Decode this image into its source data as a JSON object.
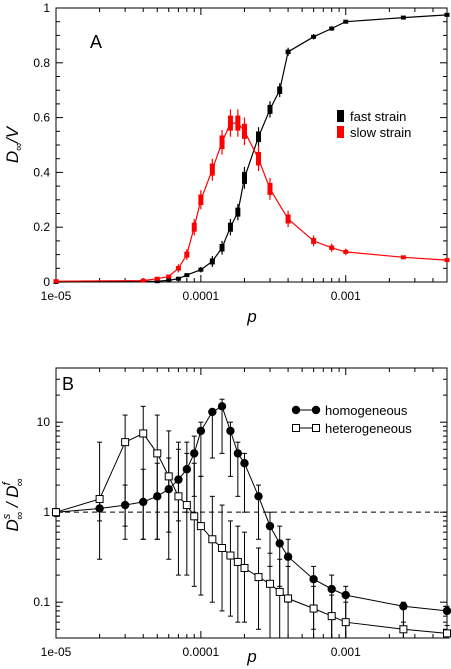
{
  "chart_data": [
    {
      "panel_label": "A",
      "type": "line",
      "x_scale": "log",
      "xlim": [
        1e-05,
        0.005
      ],
      "ylim": [
        0,
        1
      ],
      "x_ticks": [
        1e-05,
        0.0001,
        0.001
      ],
      "x_tick_labels": [
        "1e-05",
        "0.0001",
        "0.001"
      ],
      "y_ticks": [
        0,
        0.2,
        0.4,
        0.6,
        0.8,
        1
      ],
      "y_tick_labels": [
        "0",
        "0.2",
        "0.4",
        "0.6",
        "0.8",
        "1"
      ],
      "xlabel": "p",
      "ylabel": "D∞/V",
      "legend_position": "right",
      "series": [
        {
          "name": "fast strain",
          "color": "#000000",
          "x": [
            1e-05,
            5e-05,
            6e-05,
            7e-05,
            8e-05,
            0.0001,
            0.00012,
            0.00014,
            0.00016,
            0.00018,
            0.0002,
            0.00025,
            0.0003,
            0.00035,
            0.0004,
            0.0006,
            0.0008,
            0.001,
            0.0025,
            0.005
          ],
          "y": [
            0,
            0.003,
            0.006,
            0.012,
            0.025,
            0.045,
            0.075,
            0.125,
            0.2,
            0.255,
            0.38,
            0.53,
            0.63,
            0.7,
            0.84,
            0.895,
            0.925,
            0.95,
            0.965,
            0.975
          ],
          "error": [
            0,
            0,
            0,
            0,
            0.005,
            0.01,
            0.02,
            0.025,
            0.03,
            0.03,
            0.04,
            0.035,
            0.03,
            0.025,
            0.015,
            0.01,
            0.008,
            0.005,
            0.003,
            0.003
          ]
        },
        {
          "name": "slow strain",
          "color": "#ff0000",
          "x": [
            1e-05,
            4e-05,
            5e-05,
            6e-05,
            7e-05,
            8e-05,
            9e-05,
            0.0001,
            0.00012,
            0.00014,
            0.00016,
            0.00018,
            0.0002,
            0.00025,
            0.0003,
            0.0004,
            0.0006,
            0.0008,
            0.001,
            0.0025,
            0.005
          ],
          "y": [
            0.003,
            0.005,
            0.012,
            0.02,
            0.05,
            0.1,
            0.2,
            0.3,
            0.41,
            0.51,
            0.58,
            0.58,
            0.55,
            0.45,
            0.34,
            0.23,
            0.15,
            0.125,
            0.11,
            0.09,
            0.08
          ],
          "error": [
            0,
            0,
            0,
            0.005,
            0.015,
            0.02,
            0.03,
            0.035,
            0.04,
            0.045,
            0.05,
            0.05,
            0.05,
            0.045,
            0.04,
            0.03,
            0.02,
            0.015,
            0.012,
            0.006,
            0.005
          ]
        }
      ]
    },
    {
      "panel_label": "B",
      "type": "line",
      "x_scale": "log",
      "y_scale": "log",
      "xlim": [
        1e-05,
        0.005
      ],
      "ylim": [
        0.04,
        40
      ],
      "x_ticks": [
        1e-05,
        0.0001,
        0.001
      ],
      "x_tick_labels": [
        "1e-05",
        "0.0001",
        "0.001"
      ],
      "y_ticks": [
        0.1,
        1,
        10
      ],
      "y_tick_labels": [
        "0.1",
        "1",
        "10"
      ],
      "reference_line_y": 1,
      "xlabel": "p",
      "ylabel": "Ds∞ / Df∞",
      "legend_position": "top-right",
      "series": [
        {
          "name": "homogeneous",
          "marker": "filled-circle",
          "x": [
            1e-05,
            2e-05,
            3e-05,
            4e-05,
            5e-05,
            6e-05,
            7e-05,
            8e-05,
            9e-05,
            0.0001,
            0.00012,
            0.00014,
            0.00016,
            0.00018,
            0.0002,
            0.00025,
            0.0003,
            0.00035,
            0.0004,
            0.0006,
            0.0008,
            0.001,
            0.0025,
            0.005
          ],
          "y": [
            1.0,
            1.1,
            1.2,
            1.3,
            1.5,
            1.8,
            2.3,
            3.0,
            4.5,
            8.0,
            13.0,
            15.0,
            8.0,
            4.5,
            3.5,
            1.5,
            0.7,
            0.45,
            0.32,
            0.18,
            0.14,
            0.12,
            0.09,
            0.08
          ],
          "error_low": [
            0.9,
            0.8,
            0.7,
            0.5,
            0.5,
            0.6,
            0.8,
            1.0,
            1.5,
            2.5,
            4.0,
            4.5,
            2.5,
            1.5,
            1.0,
            0.5,
            0.25,
            0.15,
            0.1,
            0.05,
            0.04,
            0.03,
            0.02,
            0.02
          ],
          "error_high": [
            1.1,
            1.5,
            2.0,
            3.0,
            3.5,
            4.0,
            5.0,
            6.0,
            7.0,
            10.0,
            14.0,
            18.0,
            10.0,
            6.0,
            4.5,
            2.0,
            1.0,
            0.7,
            0.5,
            0.25,
            0.2,
            0.15,
            0.1,
            0.09
          ]
        },
        {
          "name": "heterogeneous",
          "marker": "open-square",
          "x": [
            1e-05,
            2e-05,
            3e-05,
            4e-05,
            5e-05,
            6e-05,
            7e-05,
            8e-05,
            9e-05,
            0.0001,
            0.00012,
            0.00014,
            0.00016,
            0.00018,
            0.0002,
            0.00025,
            0.0003,
            0.00035,
            0.0004,
            0.0006,
            0.0008,
            0.001,
            0.0025,
            0.005
          ],
          "y": [
            1.0,
            1.4,
            6.0,
            7.5,
            4.5,
            2.5,
            1.5,
            1.2,
            0.9,
            0.7,
            0.5,
            0.4,
            0.33,
            0.28,
            0.24,
            0.19,
            0.16,
            0.13,
            0.11,
            0.085,
            0.07,
            0.06,
            0.05,
            0.045
          ],
          "error_low": [
            0.9,
            0.3,
            0.5,
            0.5,
            0.5,
            0.3,
            0.2,
            0.2,
            0.15,
            0.12,
            0.1,
            0.08,
            0.07,
            0.06,
            0.06,
            0.05,
            0.04,
            0.04,
            0.03,
            0.03,
            0.025,
            0.02,
            0.02,
            0.02
          ],
          "error_high": [
            1.1,
            6.0,
            12.0,
            15.0,
            12.0,
            8.0,
            6.0,
            4.5,
            3.5,
            2.5,
            1.5,
            1.2,
            0.8,
            0.7,
            0.6,
            0.4,
            0.35,
            0.3,
            0.25,
            0.15,
            0.12,
            0.1,
            0.06,
            0.055
          ]
        }
      ]
    }
  ]
}
